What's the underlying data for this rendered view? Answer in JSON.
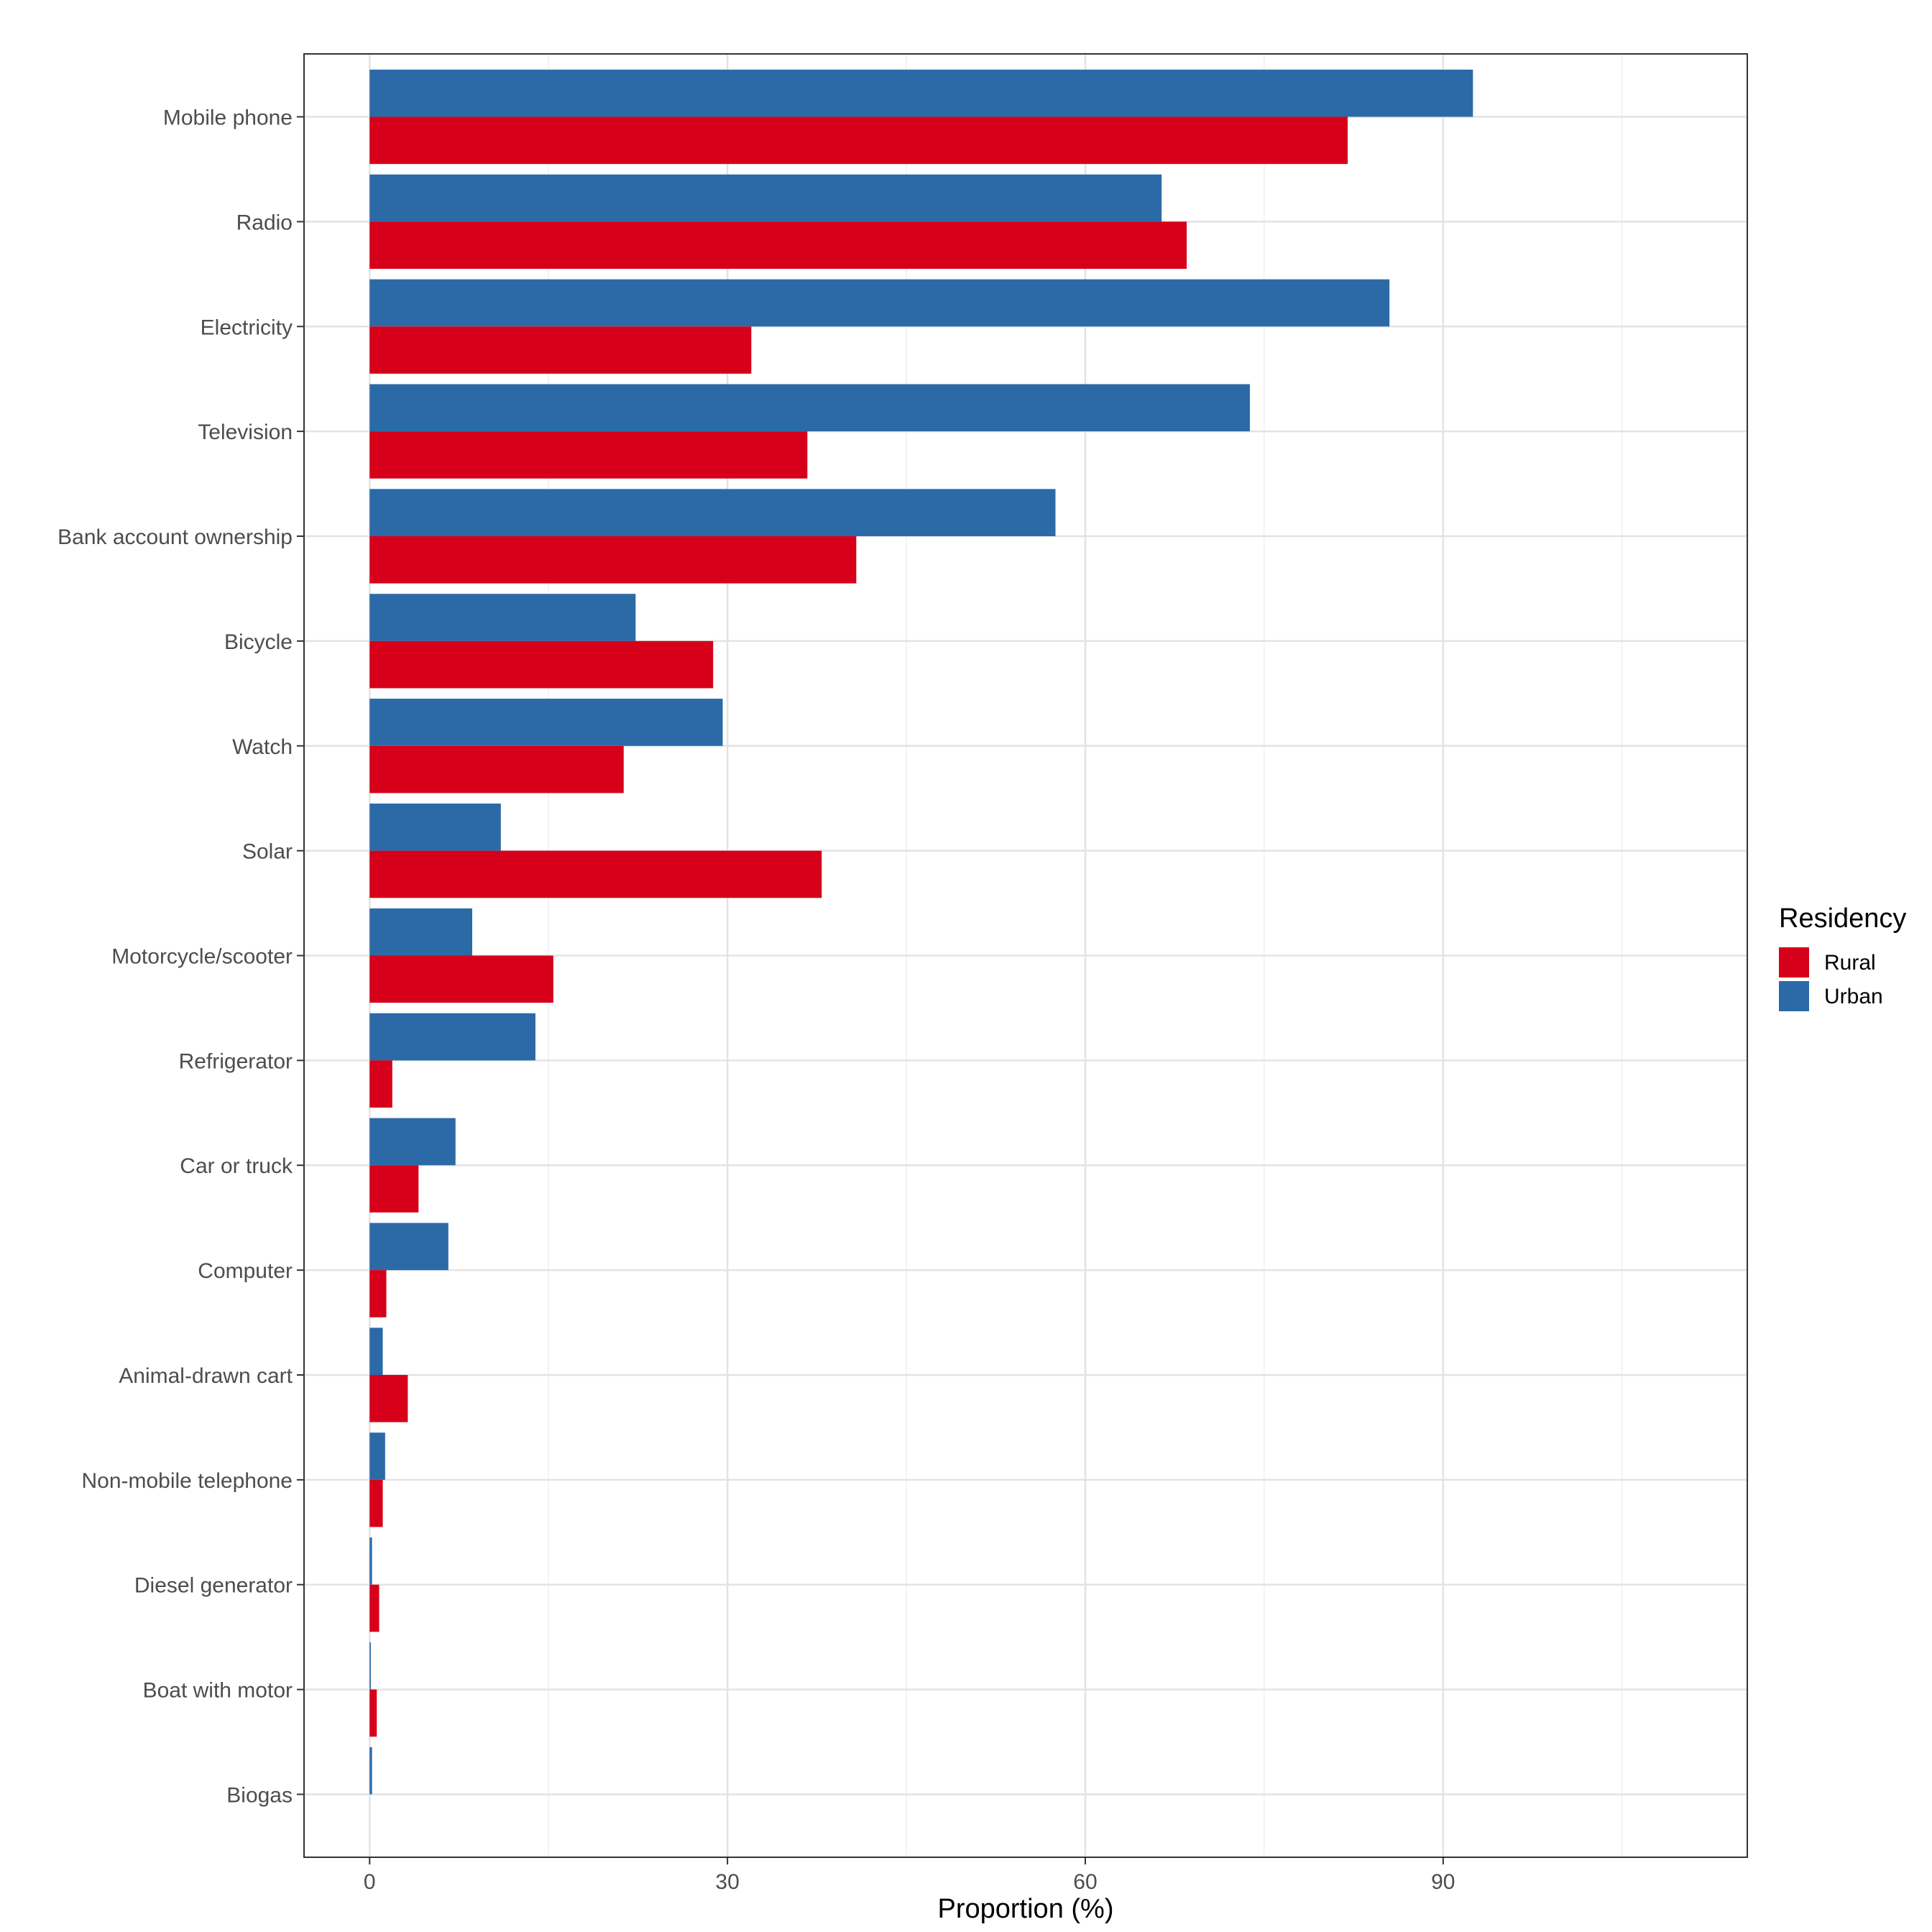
{
  "chart_data": {
    "type": "bar",
    "orientation": "horizontal",
    "xlabel": "Proportion (%)",
    "ylabel": "",
    "xlim": [
      -5.5,
      115.5
    ],
    "xticks": [
      0,
      30,
      60,
      90
    ],
    "grid": true,
    "legend": {
      "title": "Residency",
      "position": "right"
    },
    "categories": [
      "Mobile phone",
      "Radio",
      "Electricity",
      "Television",
      "Bank account ownership",
      "Bicycle",
      "Watch",
      "Solar",
      "Motorcycle/scooter",
      "Refrigerator",
      "Car or truck",
      "Computer",
      "Animal-drawn cart",
      "Non-mobile telephone",
      "Diesel generator",
      "Boat with motor",
      "Biogas"
    ],
    "series": [
      {
        "name": "Rural",
        "color": "#d7001a",
        "values": [
          82.0,
          68.5,
          32.0,
          36.7,
          40.8,
          28.8,
          21.3,
          37.9,
          15.4,
          1.9,
          4.1,
          1.4,
          3.2,
          1.1,
          0.8,
          0.6,
          0.0
        ]
      },
      {
        "name": "Urban",
        "color": "#2b6aa7",
        "values": [
          92.5,
          66.4,
          85.5,
          73.8,
          57.5,
          22.3,
          29.6,
          11.0,
          8.6,
          13.9,
          7.2,
          6.6,
          1.1,
          1.3,
          0.2,
          0.1,
          0.2
        ]
      }
    ]
  }
}
